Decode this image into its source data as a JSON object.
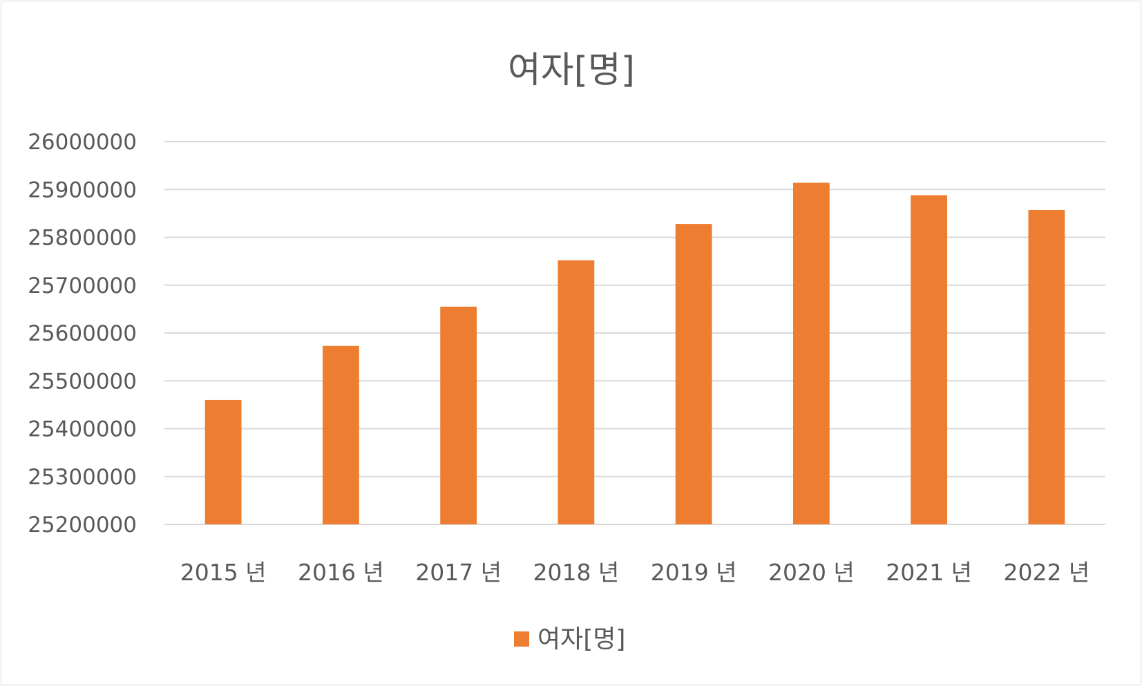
{
  "chart_data": {
    "type": "bar",
    "title": "여자[명]",
    "categories": [
      "2015 년",
      "2016 년",
      "2017 년",
      "2018 년",
      "2019 년",
      "2020 년",
      "2021 년",
      "2022 년"
    ],
    "series": [
      {
        "name": "여자[명]",
        "color": "#ed7d31",
        "values": [
          25460000,
          25573000,
          25655000,
          25752000,
          25828000,
          25914000,
          25888000,
          25857000
        ]
      }
    ],
    "ylim": [
      25200000,
      26000000
    ],
    "yticks": [
      "25200000",
      "25300000",
      "25400000",
      "25500000",
      "25600000",
      "25700000",
      "25800000",
      "25900000",
      "26000000"
    ],
    "grid": true,
    "legend": "bottom",
    "xlabel": "",
    "ylabel": ""
  }
}
